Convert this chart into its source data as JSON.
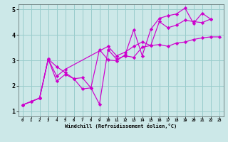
{
  "background_color": "#cce8e8",
  "line_color": "#cc00cc",
  "grid_color": "#99cccc",
  "xlabel": "Windchill (Refroidissement éolien,°C)",
  "xlim": [
    -0.5,
    23.5
  ],
  "ylim": [
    0.8,
    5.2
  ],
  "xticks": [
    0,
    1,
    2,
    3,
    4,
    5,
    6,
    7,
    8,
    9,
    10,
    11,
    12,
    13,
    14,
    15,
    16,
    17,
    18,
    19,
    20,
    21,
    22,
    23
  ],
  "yticks": [
    1,
    2,
    3,
    4,
    5
  ],
  "line1_x": [
    0,
    1,
    2,
    3,
    4,
    5,
    6,
    7,
    8,
    9,
    10,
    11,
    12,
    13,
    14,
    15,
    16,
    17,
    18,
    19,
    20,
    21,
    22,
    23
  ],
  "line1_y": [
    1.25,
    1.38,
    1.52,
    3.05,
    2.18,
    2.45,
    2.28,
    2.32,
    1.92,
    1.28,
    3.42,
    3.05,
    3.18,
    3.12,
    3.52,
    3.58,
    3.62,
    3.55,
    3.68,
    3.72,
    3.82,
    3.88,
    3.92,
    3.92
  ],
  "line2_x": [
    0,
    1,
    2,
    3,
    4,
    5,
    6,
    7,
    8,
    9,
    10,
    11,
    12,
    13,
    14,
    15,
    16,
    17,
    18,
    19,
    20,
    21,
    22
  ],
  "line2_y": [
    1.25,
    1.38,
    1.52,
    3.05,
    2.75,
    2.52,
    2.28,
    1.88,
    1.92,
    3.42,
    3.02,
    2.98,
    3.22,
    4.2,
    3.18,
    4.22,
    4.65,
    4.75,
    4.82,
    5.05,
    4.45,
    4.85,
    4.62
  ],
  "line3_x": [
    0,
    2,
    3,
    4,
    5,
    10,
    11,
    12,
    13,
    14,
    15,
    16,
    17,
    18,
    19,
    20,
    21,
    22
  ],
  "line3_y": [
    1.25,
    1.52,
    3.05,
    2.38,
    2.65,
    3.55,
    3.18,
    3.32,
    3.55,
    3.72,
    3.58,
    4.52,
    4.28,
    4.38,
    4.58,
    4.52,
    4.48,
    4.62
  ]
}
